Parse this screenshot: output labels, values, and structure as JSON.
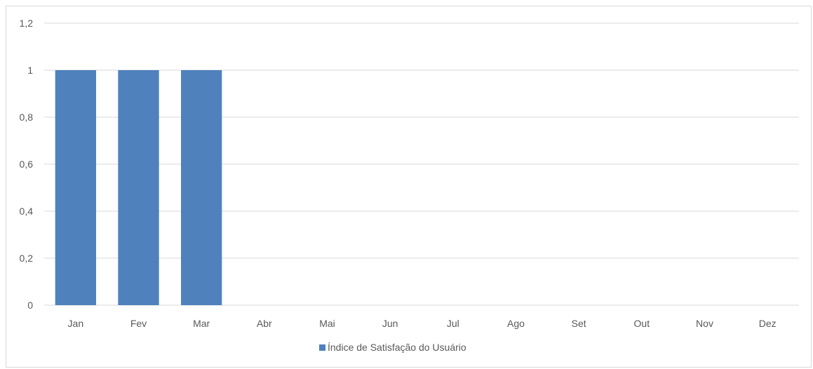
{
  "chart_data": {
    "type": "bar",
    "categories": [
      "Jan",
      "Fev",
      "Mar",
      "Abr",
      "Mai",
      "Jun",
      "Jul",
      "Ago",
      "Set",
      "Out",
      "Nov",
      "Dez"
    ],
    "series": [
      {
        "name": "Índice de Satisfação do Usuário",
        "values": [
          1,
          1,
          1,
          null,
          null,
          null,
          null,
          null,
          null,
          null,
          null,
          null
        ],
        "color": "#4f81bd"
      }
    ],
    "ylim": [
      0,
      1.2
    ],
    "yticks": [
      "0",
      "0,2",
      "0,4",
      "0,6",
      "0,8",
      "1",
      "1,2"
    ],
    "ytick_values": [
      0,
      0.2,
      0.4,
      0.6,
      0.8,
      1,
      1.2
    ],
    "grid": true,
    "legend_position": "bottom",
    "gridline_color": "#d9d9d9",
    "text_color": "#595959"
  }
}
